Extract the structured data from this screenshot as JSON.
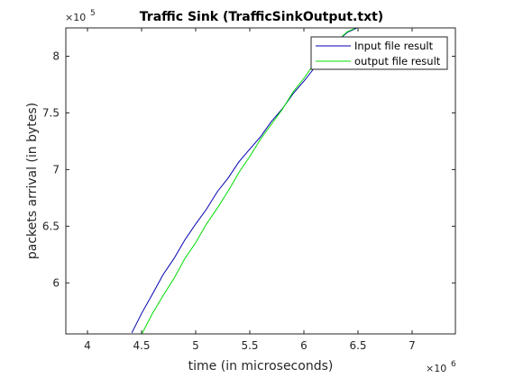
{
  "chart_data": {
    "type": "line",
    "title": "Traffic Sink (TrafficSinkOutput.txt)",
    "xlabel": "time (in microseconds)",
    "ylabel": "packets arrival (in bytes)",
    "x_multiplier": {
      "base": "×10",
      "exponent": "6"
    },
    "y_multiplier": {
      "base": "×10",
      "exponent": "5"
    },
    "xlim": [
      3.8,
      7.4
    ],
    "ylim": [
      5.55,
      8.25
    ],
    "x_ticks": [
      4,
      4.5,
      5,
      5.5,
      6,
      6.5,
      7
    ],
    "x_tick_labels": [
      "4",
      "4.5",
      "5",
      "5.5",
      "6",
      "6.5",
      "7"
    ],
    "y_ticks": [
      6,
      6.5,
      7,
      7.5,
      8
    ],
    "y_tick_labels": [
      "6",
      "6.5",
      "7",
      "7.5",
      "8"
    ],
    "grid": false,
    "legend_position": "top-right",
    "series": [
      {
        "name": "Input file result",
        "color": "#0000b0",
        "x": [
          4.41,
          4.5,
          4.6,
          4.7,
          4.8,
          4.9,
          5.0,
          5.1,
          5.2,
          5.3,
          5.4,
          5.5,
          5.6,
          5.7,
          5.8,
          5.9,
          6.0,
          6.1,
          6.2,
          6.3,
          6.4,
          6.49
        ],
        "y": [
          5.55,
          5.73,
          5.91,
          6.07,
          6.22,
          6.37,
          6.52,
          6.66,
          6.8,
          6.93,
          7.06,
          7.18,
          7.3,
          7.42,
          7.54,
          7.66,
          7.78,
          7.91,
          8.03,
          8.13,
          8.2,
          8.25
        ]
      },
      {
        "name": "output file result",
        "color": "#00dd00",
        "x": [
          4.5,
          4.6,
          4.7,
          4.8,
          4.9,
          5.0,
          5.1,
          5.2,
          5.3,
          5.4,
          5.5,
          5.6,
          5.7,
          5.8,
          5.9,
          6.0,
          6.1,
          6.2,
          6.3,
          6.4,
          6.47
        ],
        "y": [
          5.55,
          5.72,
          5.89,
          6.05,
          6.21,
          6.36,
          6.51,
          6.66,
          6.82,
          6.97,
          7.12,
          7.26,
          7.4,
          7.54,
          7.68,
          7.81,
          7.93,
          8.05,
          8.14,
          8.21,
          8.25
        ]
      }
    ]
  }
}
